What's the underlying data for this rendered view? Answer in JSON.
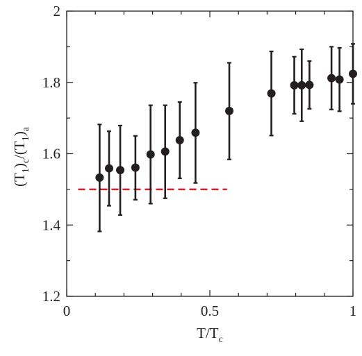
{
  "chart_data": {
    "type": "scatter",
    "title": "",
    "xlabel": {
      "main": "T/T",
      "sub": "c"
    },
    "ylabel": {
      "p1": "(T",
      "s1": "1",
      "p2": ")",
      "s2": "c",
      "p3": "/(T",
      "s3": "1",
      "p4": ")",
      "s4": "a"
    },
    "xlim": [
      0,
      1
    ],
    "ylim": [
      1.2,
      2.0
    ],
    "x_ticks": [
      {
        "value": 0,
        "label": "0"
      },
      {
        "value": 0.5,
        "label": "0.5"
      },
      {
        "value": 1,
        "label": "1"
      }
    ],
    "y_ticks": [
      {
        "value": 1.2,
        "label": "1.2"
      },
      {
        "value": 1.4,
        "label": "1.4"
      },
      {
        "value": 1.6,
        "label": "1.6"
      },
      {
        "value": 1.8,
        "label": "1.8"
      },
      {
        "value": 2.0,
        "label": "2"
      }
    ],
    "grid": false,
    "series": [
      {
        "marker_color": "#231f20",
        "points": [
          {
            "x": 0.115,
            "y": 1.533,
            "err_low": 1.382,
            "err_high": 1.682
          },
          {
            "x": 0.148,
            "y": 1.559,
            "err_low": 1.454,
            "err_high": 1.663
          },
          {
            "x": 0.187,
            "y": 1.554,
            "err_low": 1.428,
            "err_high": 1.679
          },
          {
            "x": 0.24,
            "y": 1.561,
            "err_low": 1.471,
            "err_high": 1.65
          },
          {
            "x": 0.293,
            "y": 1.598,
            "err_low": 1.46,
            "err_high": 1.736
          },
          {
            "x": 0.344,
            "y": 1.606,
            "err_low": 1.475,
            "err_high": 1.736
          },
          {
            "x": 0.395,
            "y": 1.638,
            "err_low": 1.531,
            "err_high": 1.745
          },
          {
            "x": 0.45,
            "y": 1.659,
            "err_low": 1.518,
            "err_high": 1.799
          },
          {
            "x": 0.568,
            "y": 1.72,
            "err_low": 1.584,
            "err_high": 1.855
          },
          {
            "x": 0.715,
            "y": 1.769,
            "err_low": 1.651,
            "err_high": 1.887
          },
          {
            "x": 0.795,
            "y": 1.792,
            "err_low": 1.712,
            "err_high": 1.872
          },
          {
            "x": 0.821,
            "y": 1.792,
            "err_low": 1.691,
            "err_high": 1.893
          },
          {
            "x": 0.848,
            "y": 1.793,
            "err_low": 1.726,
            "err_high": 1.86
          },
          {
            "x": 0.925,
            "y": 1.812,
            "err_low": 1.724,
            "err_high": 1.9
          },
          {
            "x": 0.953,
            "y": 1.808,
            "err_low": 1.719,
            "err_high": 1.897
          },
          {
            "x": 1.0,
            "y": 1.824,
            "err_low": 1.74,
            "err_high": 1.908
          }
        ]
      }
    ],
    "reference_line": {
      "style": "dashed",
      "color": "#d22027",
      "y": 1.5,
      "x_start": 0.04,
      "x_end": 0.56
    }
  }
}
